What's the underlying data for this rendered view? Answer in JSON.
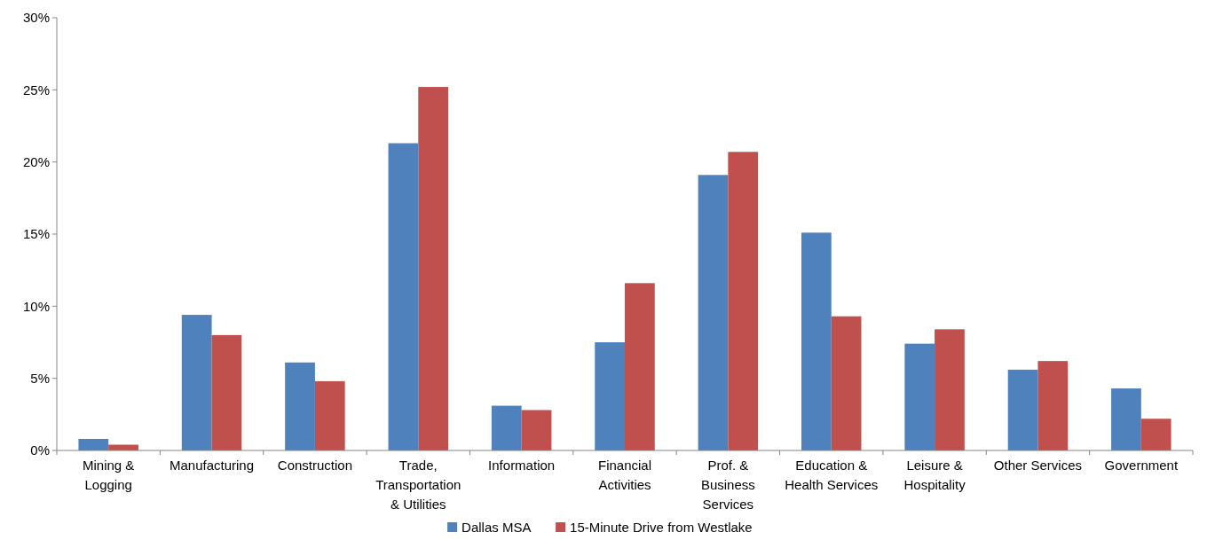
{
  "chart_data": {
    "type": "bar",
    "categories": [
      "Mining & Logging",
      "Manufacturing",
      "Construction",
      "Trade, Transportation & Utilities",
      "Information",
      "Financial Activities",
      "Prof. & Business Services",
      "Education & Health Services",
      "Leisure & Hospitality",
      "Other Services",
      "Government"
    ],
    "series": [
      {
        "name": "Dallas MSA",
        "color": "#4f81bd",
        "values": [
          0.8,
          9.4,
          6.1,
          21.3,
          3.1,
          7.5,
          19.1,
          15.1,
          7.4,
          5.6,
          4.3
        ]
      },
      {
        "name": "15-Minute Drive from Westlake",
        "color": "#c0504d",
        "values": [
          0.4,
          8.0,
          4.8,
          25.2,
          2.8,
          11.6,
          20.7,
          9.3,
          8.4,
          6.2,
          2.2
        ]
      }
    ],
    "ylim": [
      0,
      30
    ],
    "yticks": [
      {
        "value": 0,
        "label": "0%"
      },
      {
        "value": 5,
        "label": "5%"
      },
      {
        "value": 10,
        "label": "10%"
      },
      {
        "value": 15,
        "label": "15%"
      },
      {
        "value": 20,
        "label": "20%"
      },
      {
        "value": 25,
        "label": "25%"
      },
      {
        "value": 30,
        "label": "30%"
      }
    ],
    "grid": false,
    "legend": "bottom"
  }
}
